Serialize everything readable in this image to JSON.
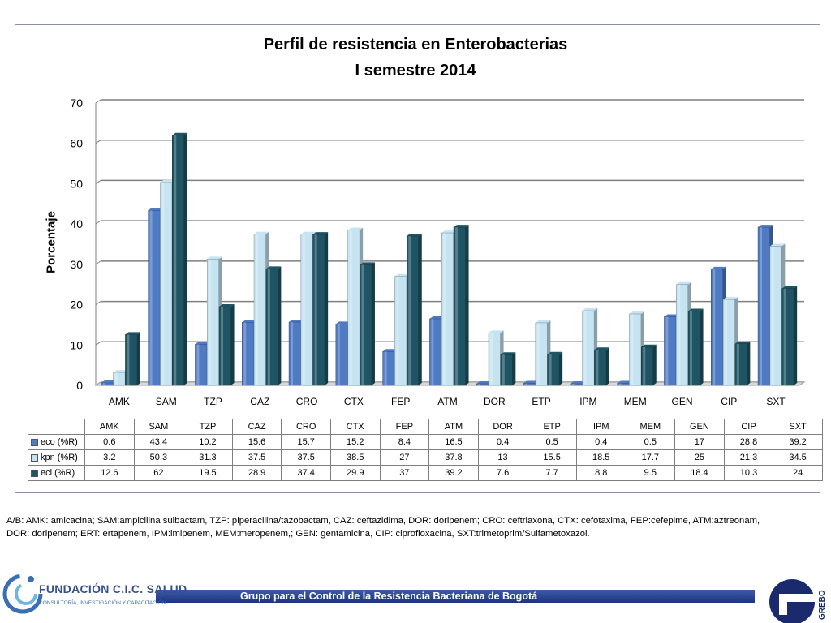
{
  "chart_data": {
    "type": "bar",
    "title": "Perfil de resistencia en Enterobacterias",
    "subtitle": "I semestre 2014",
    "ylabel": "Porcentaje",
    "xlabel": "",
    "ylim": [
      0,
      70
    ],
    "yticks": [
      0,
      10,
      20,
      30,
      40,
      50,
      60,
      70
    ],
    "grid": true,
    "categories": [
      "AMK",
      "SAM",
      "TZP",
      "CAZ",
      "CRO",
      "CTX",
      "FEP",
      "ATM",
      "DOR",
      "ETP",
      "IPM",
      "MEM",
      "GEN",
      "CIP",
      "SXT"
    ],
    "series": [
      {
        "name": "eco (%R)",
        "color": "#4f7ac4",
        "values": [
          0.6,
          43.4,
          10.2,
          15.6,
          15.7,
          15.2,
          8.4,
          16.5,
          0.4,
          0.5,
          0.4,
          0.5,
          17,
          28.8,
          39.2
        ]
      },
      {
        "name": "kpn (%R)",
        "color": "#c6e3f2",
        "values": [
          3.2,
          50.3,
          31.3,
          37.5,
          37.5,
          38.5,
          27,
          37.8,
          13,
          15.5,
          18.5,
          17.7,
          25,
          21.3,
          34.5
        ]
      },
      {
        "name": "ecl (%R)",
        "color": "#1e5463",
        "values": [
          12.6,
          62,
          19.5,
          28.9,
          37.4,
          29.9,
          37,
          39.2,
          7.6,
          7.7,
          8.8,
          9.5,
          18.4,
          10.3,
          24
        ]
      }
    ],
    "data_table_text": [
      {
        "name": "eco (%R)",
        "cells": [
          "0.6",
          "43.4",
          "10.2",
          "15.6",
          "15.7",
          "15.2",
          "8.4",
          "16.5",
          "0.4",
          "0.5",
          "0.4",
          "0.5",
          "17",
          "28.8",
          "39.2"
        ]
      },
      {
        "name": "kpn (%R)",
        "cells": [
          "3.2",
          "50.3",
          "31.3",
          "37.5",
          "37.5",
          "38.5",
          "27",
          "37.8",
          "13",
          "15.5",
          "18.5",
          "17.7",
          "25",
          "21.3",
          "34.5"
        ]
      },
      {
        "name": "ecl (%R)",
        "cells": [
          "12.6",
          "62",
          "19.5",
          "28.9",
          "37.4",
          "29.9",
          "37",
          "39.2",
          "7.6",
          "7.7",
          "8.8",
          "9.5",
          "18.4",
          "10.3",
          "24"
        ]
      }
    ]
  },
  "footnote": {
    "line1": "A/B: AMK: amicacina; SAM:ampicilina sulbactam, TZP: piperacilina/tazobactam, CAZ: ceftazidima, DOR: doripenem; CRO: ceftriaxona, CTX: cefotaxima, FEP:cefepime,   ATM:aztreonam,",
    "line2": "DOR: doripenem; ERT: ertapenem, IPM:imipenem, MEM:meropenem,; GEN: gentamicina, CIP: ciprofloxacina, SXT:trimetoprim/Sulfametoxazol."
  },
  "footer": {
    "org_name": "FUNDACIÓN C.I.C. SALUD",
    "org_tagline": "CONSULTORÍA, INVESTIGACIÓN Y CAPACITACIÓN",
    "banner": "Grupo para el Control de la Resistencia Bacteriana de Bogotá",
    "right_logo": "GREBO"
  }
}
